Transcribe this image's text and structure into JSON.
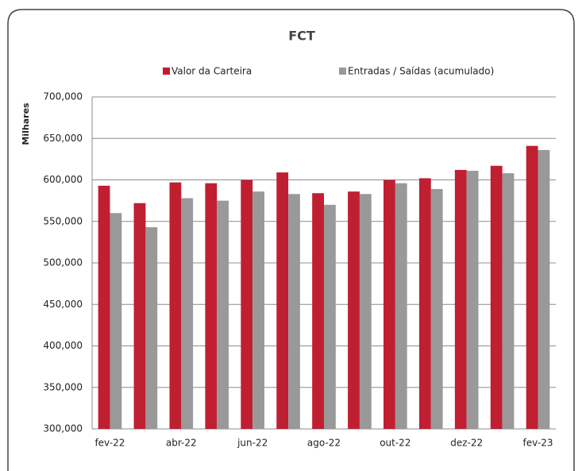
{
  "chart_data": {
    "type": "bar",
    "title": "FCT",
    "y_label": "Milhares",
    "categories": [
      "fev-22",
      null,
      "abr-22",
      null,
      "jun-22",
      null,
      "ago-22",
      null,
      "out-22",
      null,
      "dez-22",
      null,
      "fev-23"
    ],
    "series": [
      {
        "name": "Valor da Carteira",
        "color": "#c01f32",
        "values": [
          593000,
          572000,
          597000,
          596000,
          600000,
          609000,
          584000,
          586000,
          600000,
          602000,
          612000,
          617000,
          641000
        ]
      },
      {
        "name": "Entradas / Saídas (acumulado)",
        "color": "#999999",
        "values": [
          560000,
          543000,
          578000,
          575000,
          586000,
          583000,
          570000,
          583000,
          596000,
          589000,
          611000,
          608000,
          636000
        ]
      }
    ],
    "ylim": [
      300000,
      700000
    ],
    "yticks": [
      {
        "value": 300000,
        "label": "300,000"
      },
      {
        "value": 350000,
        "label": "350,000"
      },
      {
        "value": 400000,
        "label": "400,000"
      },
      {
        "value": 450000,
        "label": "450,000"
      },
      {
        "value": 500000,
        "label": "500,000"
      },
      {
        "value": 550000,
        "label": "550,000"
      },
      {
        "value": 600000,
        "label": "600,000"
      },
      {
        "value": 650000,
        "label": "650,000"
      },
      {
        "value": 700000,
        "label": "700,000"
      }
    ],
    "grid": true
  }
}
